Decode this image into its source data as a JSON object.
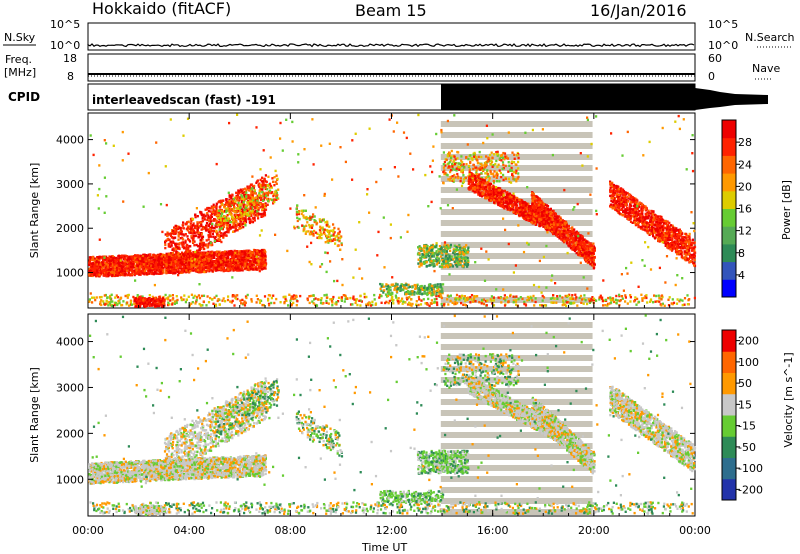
{
  "header": {
    "station": "Hokkaido (fitACF)",
    "beam": "Beam 15",
    "date": "16/Jan/2016"
  },
  "panels": {
    "nsky": {
      "left_label": "N.Sky",
      "right_label": "N.Search",
      "ticks_left": [
        "10^5",
        "10^0"
      ],
      "ticks_right": [
        "10^5",
        "10^0"
      ]
    },
    "freq": {
      "left_label_1": "Freq.",
      "left_label_2": "[MHz]",
      "right_label": "Nave",
      "ticks_left": [
        "18",
        "8"
      ],
      "ticks_right": [
        "60",
        "0"
      ]
    },
    "cpid": {
      "label": "CPID",
      "text": "interleavedscan (fast) -191"
    }
  },
  "chart_data": [
    {
      "type": "heatmap",
      "name": "power",
      "ylabel": "Slant Range [km]",
      "yticks": [
        1000,
        2000,
        3000,
        4000
      ],
      "ylim": [
        200,
        4600
      ],
      "xlim_hours": [
        0,
        24
      ],
      "colorbar": {
        "label": "Power [dB]",
        "ticks": [
          4,
          8,
          12,
          16,
          20,
          24,
          28
        ],
        "colors": [
          "#0000ff",
          "#3355bb",
          "#2e8b57",
          "#55aa55",
          "#66cc33",
          "#ddcc00",
          "#ff9900",
          "#ff6600",
          "#ff2200",
          "#ee0000"
        ]
      }
    },
    {
      "type": "heatmap",
      "name": "velocity",
      "ylabel": "Slant Range [km]",
      "yticks": [
        1000,
        2000,
        3000,
        4000
      ],
      "ylim": [
        200,
        4600
      ],
      "xlim_hours": [
        0,
        24
      ],
      "xlabel": "Time UT",
      "xticks": [
        "00:00",
        "04:00",
        "08:00",
        "12:00",
        "16:00",
        "20:00",
        "00:00"
      ],
      "colorbar": {
        "label": "Velocity [m s^-1]",
        "ticks": [
          200,
          100,
          50,
          15,
          -15,
          -50,
          -100,
          -200
        ],
        "colors": [
          "#2233aa",
          "#2e6e8e",
          "#2e8b57",
          "#66cc33",
          "#c8c8c8",
          "#ff9900",
          "#ff6600",
          "#ee0000"
        ]
      },
      "shaded_interval_hours": [
        13.95,
        19.95
      ]
    }
  ]
}
